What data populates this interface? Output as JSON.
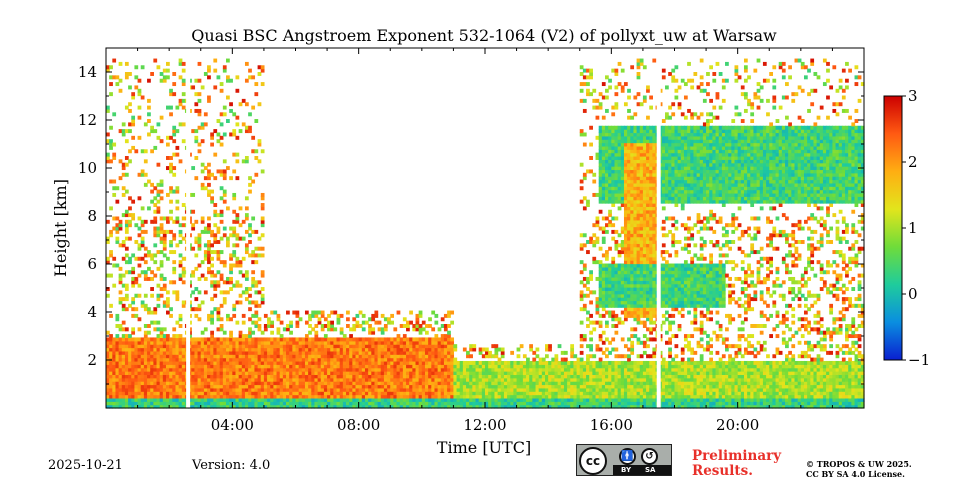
{
  "chart_data": {
    "type": "heatmap",
    "title": "Quasi BSC Angstroem Exponent 532-1064 (V2) of pollyxt_uw at Warsaw",
    "xlabel": "Time [UTC]",
    "ylabel": "Height [km]",
    "xlim_hours": [
      0,
      24
    ],
    "ylim_km": [
      0,
      15
    ],
    "xticks": [
      {
        "hour": 4,
        "label": "04:00"
      },
      {
        "hour": 8,
        "label": "08:00"
      },
      {
        "hour": 12,
        "label": "12:00"
      },
      {
        "hour": 16,
        "label": "16:00"
      },
      {
        "hour": 20,
        "label": "20:00"
      }
    ],
    "yticks": [
      {
        "value": 2,
        "label": "2"
      },
      {
        "value": 4,
        "label": "4"
      },
      {
        "value": 6,
        "label": "6"
      },
      {
        "value": 8,
        "label": "8"
      },
      {
        "value": 10,
        "label": "10"
      },
      {
        "value": 12,
        "label": "12"
      },
      {
        "value": 14,
        "label": "14"
      }
    ],
    "colorbar": {
      "range": [
        -1,
        3
      ],
      "ticks": [
        {
          "value": 3,
          "label": "3"
        },
        {
          "value": 2,
          "label": "2"
        },
        {
          "value": 1,
          "label": "1"
        },
        {
          "value": 0,
          "label": "0"
        },
        {
          "value": -1,
          "label": "−1"
        }
      ],
      "colormap": [
        "#0a1fd0",
        "#0a8ee0",
        "#1fcc9c",
        "#6fdc3a",
        "#e2e51c",
        "#ffae12",
        "#ff5a12",
        "#cc0000"
      ]
    },
    "missing_data_hours": [
      2.6,
      17.5
    ],
    "regions": [
      {
        "name": "near-surface layer",
        "t0": 0,
        "t1": 24,
        "h0": 0,
        "h1": 0.4,
        "value": 0.3
      },
      {
        "name": "boundary layer morning",
        "t0": 0,
        "t1": 11,
        "h0": 0.4,
        "h1": 3.0,
        "value": 2.2
      },
      {
        "name": "boundary layer afternoon",
        "t0": 11,
        "t1": 24,
        "h0": 0.4,
        "h1": 2.0,
        "value": 1.0
      },
      {
        "name": "cirrus layer",
        "t0": 15.6,
        "t1": 24,
        "h0": 8.5,
        "h1": 11.8,
        "value": 0.4
      },
      {
        "name": "convective column",
        "t0": 16.4,
        "t1": 17.5,
        "h0": 3.8,
        "h1": 11.0,
        "value": 1.8
      },
      {
        "name": "mid-level cloud",
        "t0": 15.6,
        "t1": 19.6,
        "h0": 4.2,
        "h1": 6.0,
        "value": 0.4
      }
    ]
  },
  "footer": {
    "date": "2025-10-21",
    "version": "Version: 4.0",
    "preliminary_line1": "Preliminary",
    "preliminary_line2": "Results.",
    "preliminary_color": "#e8302a",
    "copyright_line1": "© TROPOS & UW 2025.",
    "copyright_line2": "CC BY SA 4.0 License.",
    "license_badge": {
      "cc": "cc",
      "by": "BY",
      "sa": "SA"
    }
  }
}
